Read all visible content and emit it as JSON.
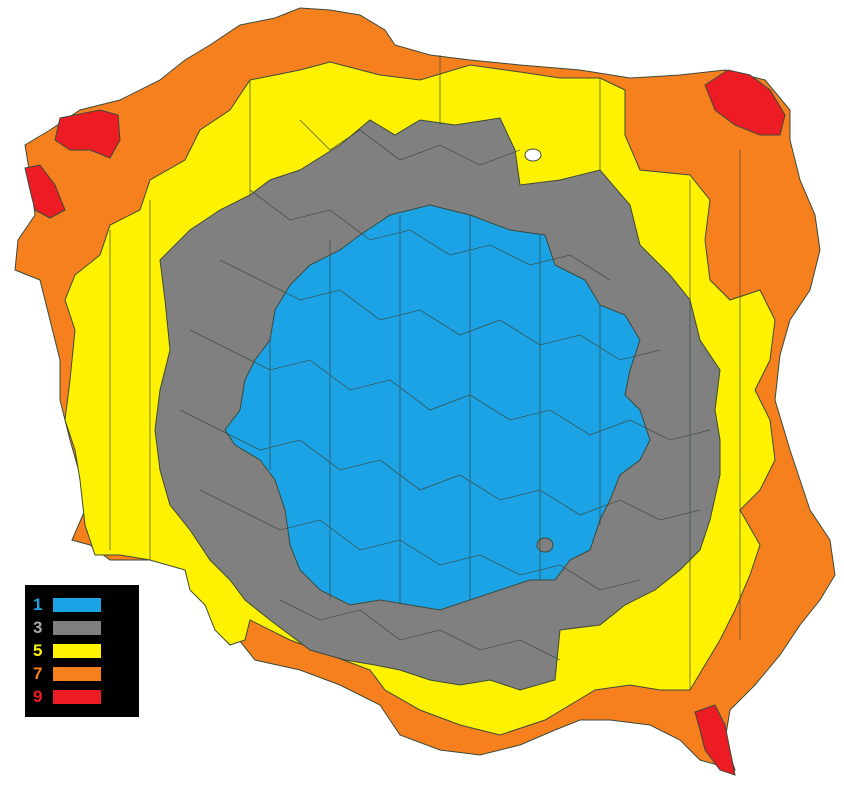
{
  "legend": {
    "items": [
      {
        "value": "1",
        "color": "#1ca3e6",
        "text_color": "#1ca3e6"
      },
      {
        "value": "3",
        "color": "#808080",
        "text_color": "#a9a9a9"
      },
      {
        "value": "5",
        "color": "#fff200",
        "text_color": "#fff200"
      },
      {
        "value": "7",
        "color": "#f7801e",
        "text_color": "#f7801e"
      },
      {
        "value": "9",
        "color": "#ed1c24",
        "text_color": "#ed1c24"
      }
    ]
  },
  "colors": {
    "border": "#3b4a3b",
    "background": "#ffffff"
  }
}
